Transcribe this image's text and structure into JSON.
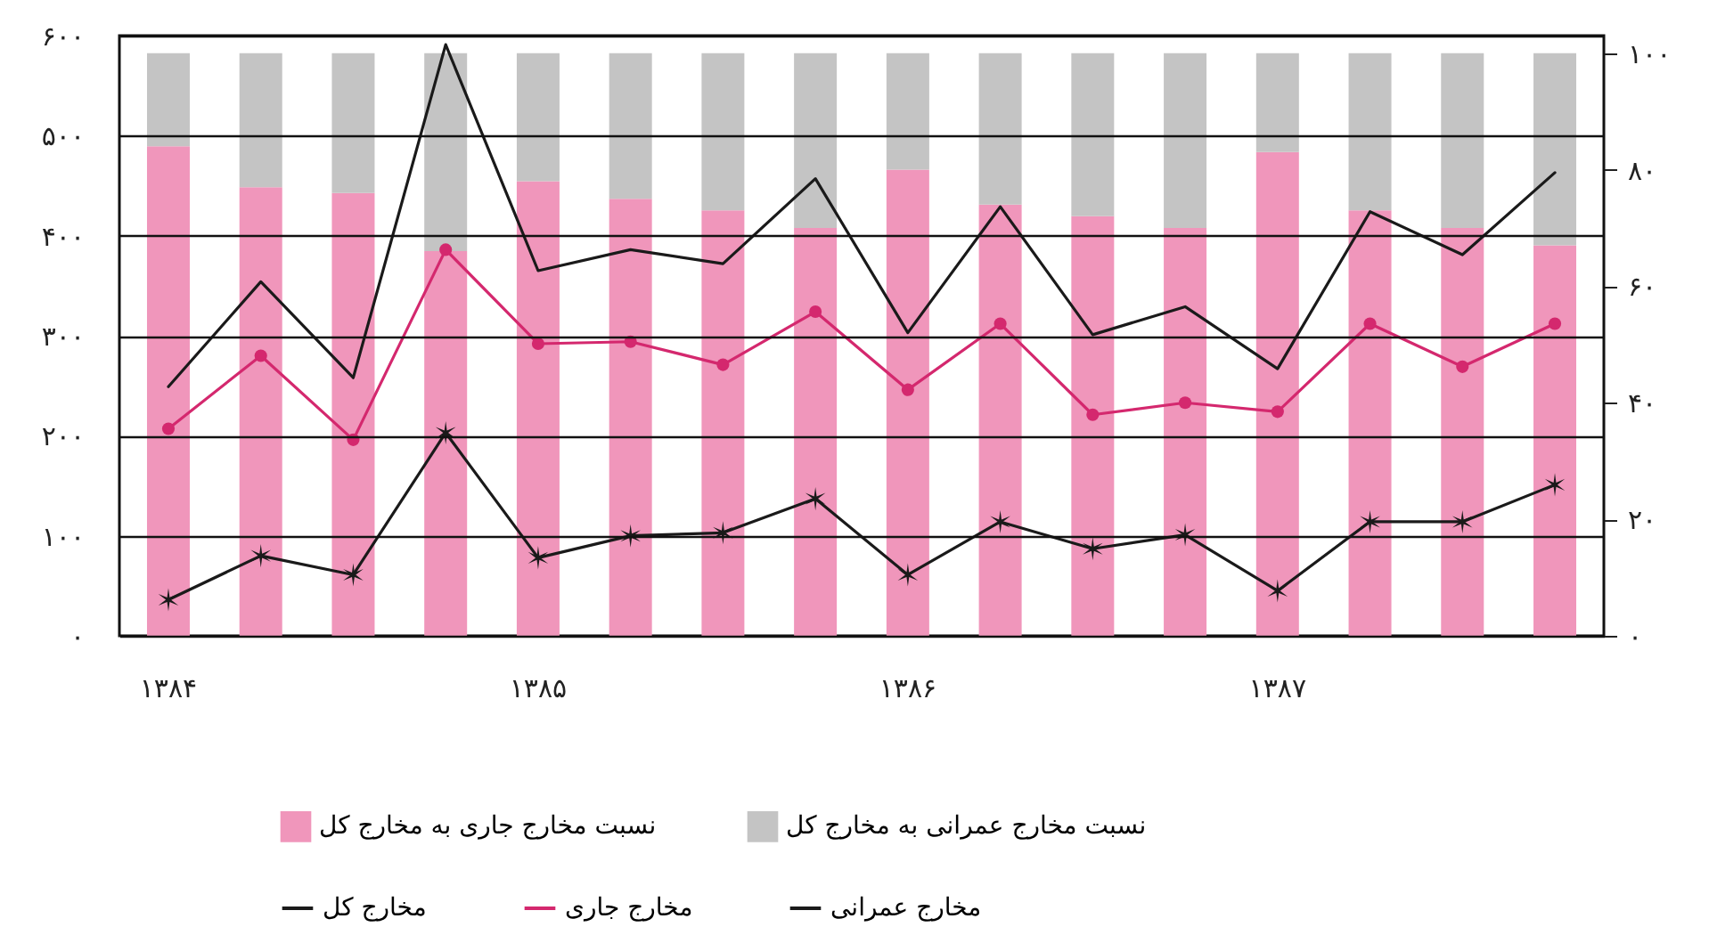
{
  "chart_data": {
    "type": "bar",
    "stacked": true,
    "categories": [
      "۱۳۸۴",
      null,
      null,
      null,
      "۱۳۸۵",
      null,
      null,
      null,
      "۱۳۸۶",
      null,
      null,
      null,
      "۱۳۸۷",
      null,
      null,
      null
    ],
    "series": [
      {
        "name": "نسبت مخارج جاری به مخارج کل",
        "axis": "y2",
        "color": "#f096bb",
        "values": [
          84,
          77,
          76,
          66,
          78,
          75,
          73,
          70,
          80,
          74,
          72,
          70,
          83,
          73,
          70,
          67
        ]
      },
      {
        "name": "نسبت مخارج عمرانی به مخارج کل",
        "axis": "y2",
        "color": "#c4c4c4",
        "values": [
          16,
          23,
          24,
          34,
          22,
          25,
          27,
          30,
          20,
          26,
          28,
          30,
          17,
          27,
          30,
          33
        ]
      },
      {
        "name": "مخارج کل",
        "type": "line",
        "color": "#1a1a1a",
        "marker": "none",
        "values": [
          249,
          354,
          258,
          591,
          365,
          386,
          372,
          457,
          303,
          429,
          301,
          329,
          267,
          424,
          381,
          463
        ]
      },
      {
        "name": "مخارج جاری",
        "type": "line",
        "color": "#d4286e",
        "marker": "circle",
        "values": [
          207,
          280,
          196,
          386,
          292,
          294,
          271,
          324,
          246,
          312,
          221,
          233,
          224,
          312,
          269,
          312
        ]
      },
      {
        "name": "مخارج عمرانی",
        "type": "line",
        "color": "#1a1a1a",
        "marker": "cross",
        "values": [
          36,
          80,
          61,
          203,
          78,
          100,
          103,
          137,
          61,
          114,
          87,
          101,
          45,
          114,
          114,
          151
        ]
      }
    ],
    "ylim": [
      0,
      600
    ],
    "yticks": [
      {
        "value": 0,
        "label": "۰"
      },
      {
        "value": 100,
        "label": "۱۰۰"
      },
      {
        "value": 200,
        "label": "۲۰۰"
      },
      {
        "value": 300,
        "label": "۳۰۰"
      },
      {
        "value": 400,
        "label": "۴۰۰"
      },
      {
        "value": 500,
        "label": "۵۰۰"
      },
      {
        "value": 600,
        "label": "۶۰۰"
      }
    ],
    "y2lim": [
      0,
      103
    ],
    "y2ticks": [
      {
        "value": 0,
        "label": "۰"
      },
      {
        "value": 20,
        "label": "۲۰"
      },
      {
        "value": 40,
        "label": "۴۰"
      },
      {
        "value": 60,
        "label": "۶۰"
      },
      {
        "value": 80,
        "label": "۸۰"
      },
      {
        "value": 100,
        "label": "۱۰۰"
      }
    ],
    "grid": "y",
    "legend": "bottom"
  }
}
